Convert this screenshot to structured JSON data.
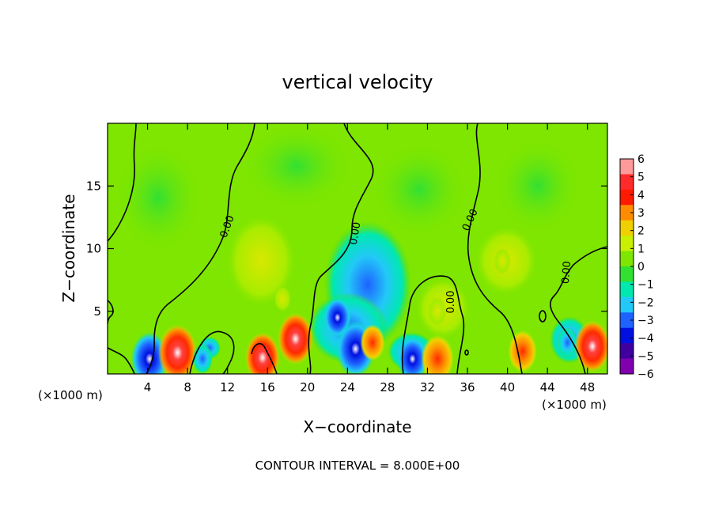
{
  "chart_data": {
    "type": "heatmap",
    "title": "vertical velocity",
    "xlabel": "X−coordinate",
    "ylabel": "Z−coordinate",
    "x_unit_left": "(×1000 m)",
    "x_unit_right": "(×1000 m)",
    "footer": "CONTOUR INTERVAL = 8.000E+00",
    "xlim": [
      0,
      50
    ],
    "ylim": [
      0,
      20
    ],
    "x_ticks": [
      4,
      8,
      12,
      16,
      20,
      24,
      28,
      32,
      36,
      40,
      44,
      48
    ],
    "x_tick_labels": [
      "4",
      "8",
      "12",
      "16",
      "20",
      "24",
      "28",
      "32",
      "36",
      "40",
      "44",
      "48"
    ],
    "y_ticks": [
      5,
      10,
      15
    ],
    "y_tick_labels": [
      "5",
      "10",
      "15"
    ],
    "colorbar": {
      "levels": [
        6,
        5,
        4,
        3,
        2,
        1,
        0,
        -1,
        -2,
        -3,
        -4,
        -5,
        -6
      ],
      "labels": [
        "6",
        "5",
        "4",
        "3",
        "2",
        "1",
        "0",
        "−1",
        "−2",
        "−3",
        "−4",
        "−5",
        "−6"
      ],
      "colors": [
        "#ff9a9a",
        "#ff2a2a",
        "#ff1a00",
        "#ff8c00",
        "#f0d000",
        "#c8f000",
        "#7ee600",
        "#32e032",
        "#00e8b0",
        "#22c8f8",
        "#1e62ff",
        "#0010e0",
        "#4000a0",
        "#8000b0"
      ]
    },
    "background_color": "#7ee600",
    "zero_contour_labels": [
      "0.00",
      "0.00",
      "0.00",
      "0.00",
      "0.00"
    ],
    "blobs": [
      {
        "x": 4.2,
        "z": 1.2,
        "value": -5.5
      },
      {
        "x": 7.0,
        "z": 1.7,
        "value": 6.0
      },
      {
        "x": 9.5,
        "z": 1.2,
        "value": -1.5
      },
      {
        "x": 15.5,
        "z": 1.3,
        "value": 5.0
      },
      {
        "x": 18.8,
        "z": 2.8,
        "value": 5.2
      },
      {
        "x": 17.5,
        "z": 6.0,
        "value": 1.0
      },
      {
        "x": 23.0,
        "z": 4.5,
        "value": -3.2
      },
      {
        "x": 24.8,
        "z": 2.0,
        "value": -6.0
      },
      {
        "x": 26.5,
        "z": 2.5,
        "value": 2.5
      },
      {
        "x": 30.5,
        "z": 1.2,
        "value": -4.0
      },
      {
        "x": 33.0,
        "z": 1.2,
        "value": 4.5
      },
      {
        "x": 33.0,
        "z": 5.0,
        "value": 1.0
      },
      {
        "x": 41.5,
        "z": 1.8,
        "value": 3.5
      },
      {
        "x": 39.5,
        "z": 9.0,
        "value": 0.6
      },
      {
        "x": 46.0,
        "z": 2.5,
        "value": -1.5
      },
      {
        "x": 48.5,
        "z": 2.2,
        "value": 5.2
      }
    ]
  }
}
